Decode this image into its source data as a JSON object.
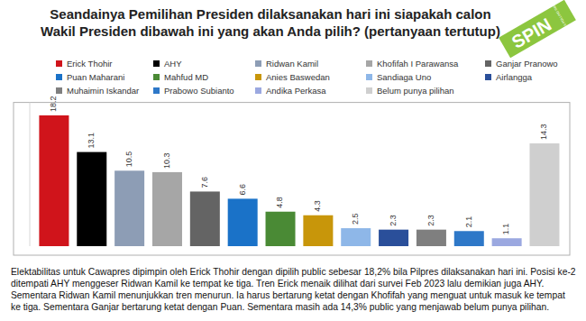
{
  "chart_data": {
    "type": "bar",
    "title": "Seandainya Pemilihan Presiden dilaksanakan hari ini siapakah calon Wakil Presiden dibawah ini yang akan Anda pilih? (pertanyaan tertutup)",
    "categories": [
      "Erick Thohir",
      "AHY",
      "Ridwan Kamil",
      "Khofifah I Parawansa",
      "Ganjar Pranowo",
      "Puan Maharani",
      "Mahfud MD",
      "Anies Baswedan",
      "Sandiaga Uno",
      "Airlangga",
      "Muhaimin Iskandar",
      "Prabowo Subianto",
      "Andika Perkasa",
      "Belum punya pilihan"
    ],
    "values": [
      18.2,
      13.1,
      10.5,
      10.3,
      7.6,
      6.6,
      4.8,
      4.3,
      2.5,
      2.3,
      2.3,
      2.1,
      1.1,
      14.3
    ],
    "colors": [
      "#d0141b",
      "#000000",
      "#8d9db5",
      "#a6a6a6",
      "#646464",
      "#1a72c8",
      "#4a8a35",
      "#c8960a",
      "#8eb7e8",
      "#2a4f9a",
      "#7f7f7f",
      "#2e78c8",
      "#9ba8e0",
      "#cfcfcf"
    ],
    "ylim": [
      0,
      20
    ],
    "data_labels": true,
    "tick_labels": false,
    "grid": false,
    "legend": "top",
    "annotations": [
      "Elektabilitas untuk Cawapres dipimpin oleh Erick Thohir dengan dipilih public sebesar 18,2% bila Pilpres dilaksanakan hari ini. Posisi ke-2 ditempati AHY menggeser Ridwan Kamil ke tempat ke tiga.  Tren Erick menaik dilihat dari survei Feb 2023 lalu demikian juga AHY. Sementara Ridwan Kamil menunjukkan tren menurun. Ia harus bertarung ketat dengan Khofifah yang menguat untuk masuk ke tempat ke tiga. Sementara Ganjar bertarung ketat dengan Puan. Sementara masih ada 14,3% public yang menjawab belum punya pilihan."
    ]
  },
  "logo": {
    "text": "SPIN",
    "subtitle": "SURVEI & POLLING INDONESIA"
  }
}
